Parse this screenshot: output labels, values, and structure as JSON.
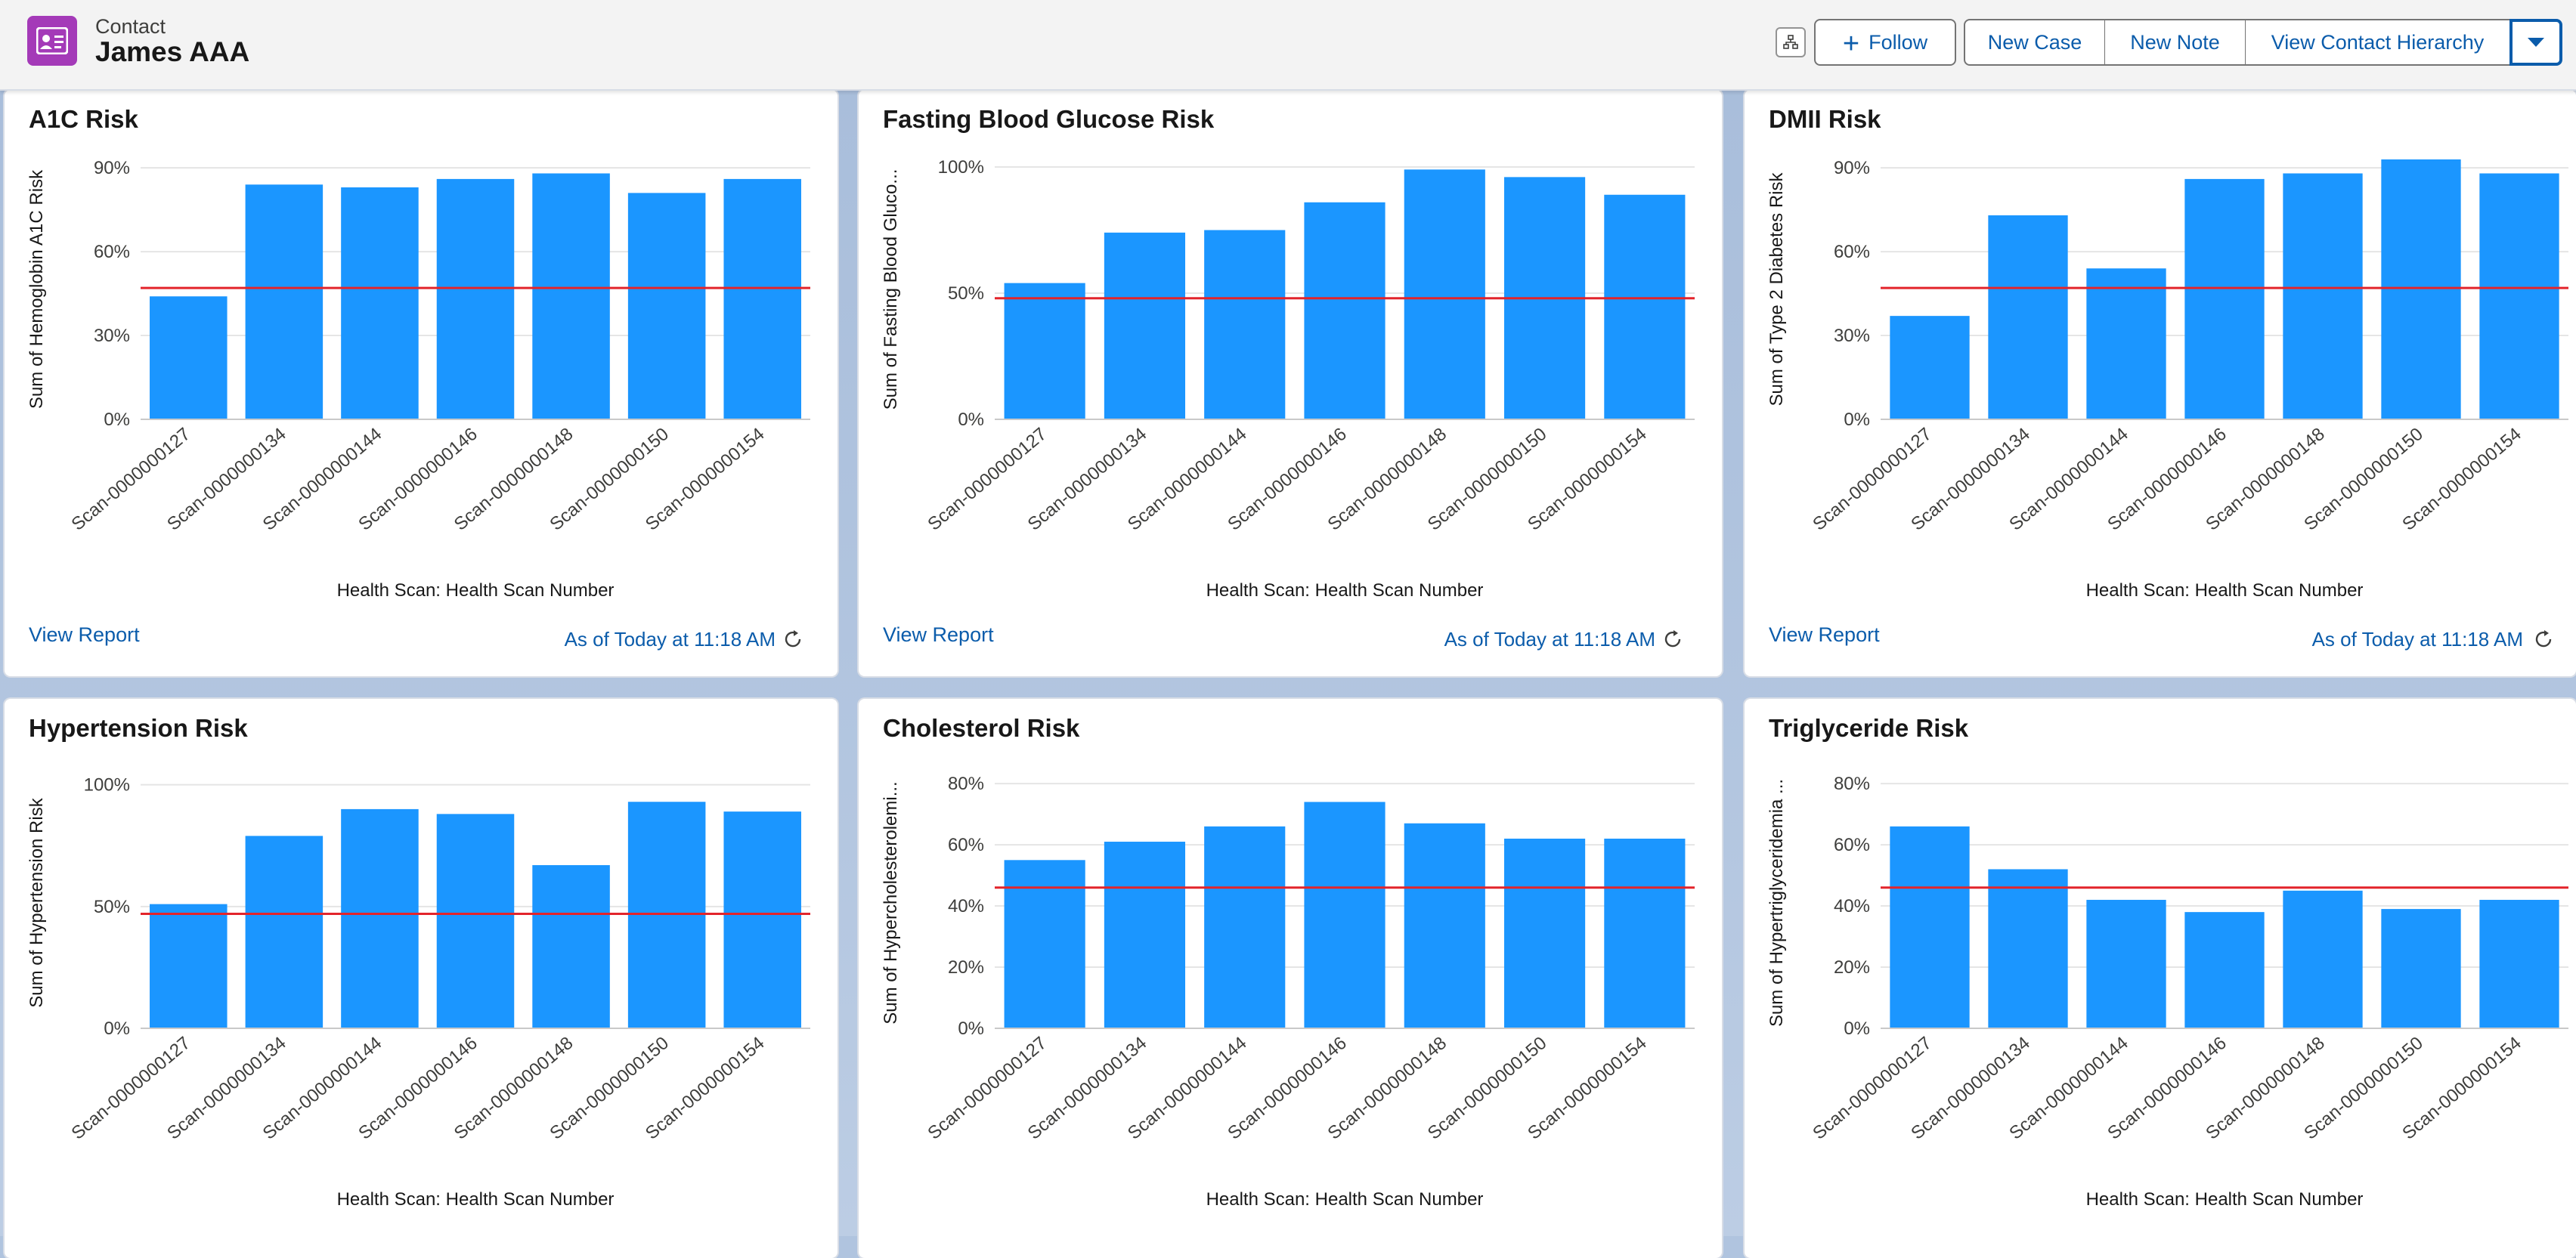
{
  "header": {
    "object_label": "Contact",
    "record_name": "James AAA",
    "follow_label": "Follow",
    "new_case_label": "New Case",
    "new_note_label": "New Note",
    "view_hierarchy_label": "View Contact Hierarchy",
    "icons": {
      "object": "contact-card-icon",
      "hierarchy": "hierarchy-icon",
      "more": "chevron-down-icon",
      "follow": "plus-icon"
    }
  },
  "colors": {
    "bar": "#1b96ff",
    "threshold": "#e3242b",
    "link": "#0b5cab",
    "object_icon": "#a43ab8"
  },
  "cards": [
    {
      "title": "A1C Risk",
      "view_report": "View Report",
      "as_of": "As of Today at 11:18 AM"
    },
    {
      "title": "Fasting Blood Glucose Risk",
      "view_report": "View Report",
      "as_of": "As of Today at 11:18 AM"
    },
    {
      "title": "DMII Risk",
      "view_report": "View Report",
      "as_of": "As of Today at 11:18 AM"
    },
    {
      "title": "Hypertension Risk"
    },
    {
      "title": "Cholesterol Risk"
    },
    {
      "title": "Triglyceride Risk"
    }
  ],
  "chart_data": [
    {
      "type": "bar",
      "title": "A1C Risk",
      "categories": [
        "Scan-0000000127",
        "Scan-0000000134",
        "Scan-0000000144",
        "Scan-0000000146",
        "Scan-0000000148",
        "Scan-0000000150",
        "Scan-0000000154"
      ],
      "values": [
        44,
        84,
        83,
        86,
        88,
        81,
        86
      ],
      "xlabel": "Health Scan: Health Scan Number",
      "ylabel": "Sum of Hemoglobin A1C Risk",
      "yticks": [
        "0%",
        "30%",
        "60%",
        "90%"
      ],
      "ylim": [
        0,
        93
      ],
      "threshold": 47,
      "grid": true
    },
    {
      "type": "bar",
      "title": "Fasting Blood Glucose Risk",
      "categories": [
        "Scan-0000000127",
        "Scan-0000000134",
        "Scan-0000000144",
        "Scan-0000000146",
        "Scan-0000000148",
        "Scan-0000000150",
        "Scan-0000000154"
      ],
      "values": [
        54,
        74,
        75,
        86,
        99,
        96,
        89
      ],
      "xlabel": "Health Scan: Health Scan Number",
      "ylabel": "Sum of Fasting Blood Gluco...",
      "yticks": [
        "0%",
        "50%",
        "100%"
      ],
      "ylim": [
        0,
        103
      ],
      "threshold": 48,
      "grid": true
    },
    {
      "type": "bar",
      "title": "DMII Risk",
      "categories": [
        "Scan-0000000127",
        "Scan-0000000134",
        "Scan-0000000144",
        "Scan-0000000146",
        "Scan-0000000148",
        "Scan-0000000150",
        "Scan-0000000154"
      ],
      "values": [
        37,
        73,
        54,
        86,
        88,
        93,
        88
      ],
      "xlabel": "Health Scan: Health Scan Number",
      "ylabel": "Sum of Type 2 Diabetes Risk",
      "yticks": [
        "0%",
        "30%",
        "60%",
        "90%"
      ],
      "ylim": [
        0,
        93
      ],
      "threshold": 47,
      "grid": true
    },
    {
      "type": "bar",
      "title": "Hypertension Risk",
      "categories": [
        "Scan-0000000127",
        "Scan-0000000134",
        "Scan-0000000144",
        "Scan-0000000146",
        "Scan-0000000148",
        "Scan-0000000150",
        "Scan-0000000154"
      ],
      "values": [
        51,
        79,
        90,
        88,
        67,
        93,
        89
      ],
      "xlabel": "Health Scan: Health Scan Number",
      "ylabel": "Sum of Hypertension Risk",
      "yticks": [
        "0%",
        "50%",
        "100%"
      ],
      "ylim": [
        0,
        103
      ],
      "threshold": 47,
      "grid": true
    },
    {
      "type": "bar",
      "title": "Cholesterol Risk",
      "categories": [
        "Scan-0000000127",
        "Scan-0000000134",
        "Scan-0000000144",
        "Scan-0000000146",
        "Scan-0000000148",
        "Scan-0000000150",
        "Scan-0000000154"
      ],
      "values": [
        55,
        61,
        66,
        74,
        67,
        62,
        62
      ],
      "xlabel": "Health Scan: Health Scan Number",
      "ylabel": "Sum of Hypercholesterolemi...",
      "yticks": [
        "0%",
        "20%",
        "40%",
        "60%",
        "80%"
      ],
      "ylim": [
        0,
        82
      ],
      "threshold": 46,
      "grid": true
    },
    {
      "type": "bar",
      "title": "Triglyceride Risk",
      "categories": [
        "Scan-0000000127",
        "Scan-0000000134",
        "Scan-0000000144",
        "Scan-0000000146",
        "Scan-0000000148",
        "Scan-0000000150",
        "Scan-0000000154"
      ],
      "values": [
        66,
        52,
        42,
        38,
        45,
        39,
        42
      ],
      "xlabel": "Health Scan: Health Scan Number",
      "ylabel": "Sum of Hypertriglyceridemia ...",
      "yticks": [
        "0%",
        "20%",
        "40%",
        "60%",
        "80%"
      ],
      "ylim": [
        0,
        82
      ],
      "threshold": 46,
      "grid": true
    }
  ]
}
